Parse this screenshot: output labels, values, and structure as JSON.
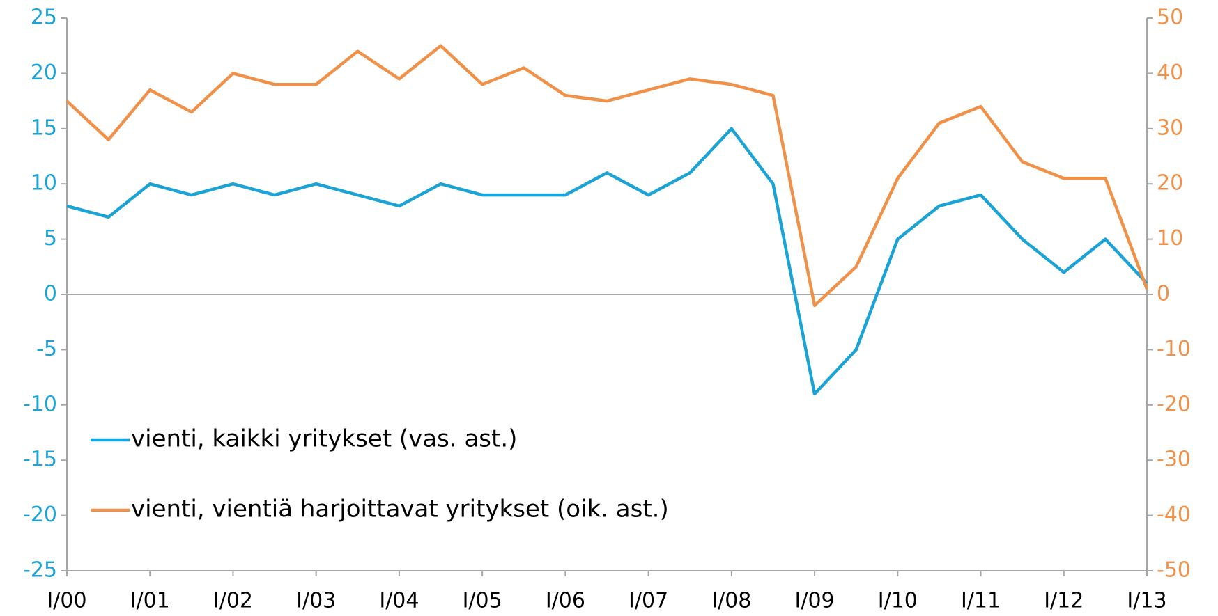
{
  "chart_data": {
    "type": "line",
    "categories": [
      "I/00",
      null,
      "I/01",
      null,
      "I/02",
      null,
      "I/03",
      null,
      "I/04",
      null,
      "I/05",
      null,
      "I/06",
      null,
      "I/07",
      null,
      "I/08",
      null,
      "I/09",
      null,
      "I/10",
      null,
      "I/11",
      null,
      "I/12",
      null,
      "I/13"
    ],
    "series": [
      {
        "name": "vienti, kaikki yritykset (vas. ast.)",
        "color": "#1ba3d6",
        "axis": "y",
        "values": [
          8,
          7,
          10,
          9,
          10,
          9,
          10,
          9,
          8,
          10,
          9,
          9,
          9,
          11,
          9,
          11,
          15,
          10,
          -9,
          -5,
          5,
          8,
          9,
          5,
          2,
          5,
          1
        ]
      },
      {
        "name": "vienti, vientiä harjoittavat yritykset (oik. ast.)",
        "color": "#f0914a",
        "axis": "y2",
        "values": [
          35,
          28,
          37,
          33,
          40,
          38,
          38,
          44,
          39,
          45,
          38,
          41,
          36,
          35,
          37,
          39,
          38,
          36,
          -2,
          5,
          21,
          31,
          34,
          24,
          21,
          21,
          1
        ]
      }
    ],
    "ylim": [
      -25,
      25
    ],
    "yticks": [
      -25,
      -20,
      -15,
      -10,
      -5,
      0,
      5,
      10,
      15,
      20,
      25
    ],
    "y2lim": [
      -50,
      50
    ],
    "y2ticks": [
      -50,
      -40,
      -30,
      -20,
      -10,
      0,
      10,
      20,
      30,
      40,
      50
    ],
    "legend": "lower left"
  }
}
